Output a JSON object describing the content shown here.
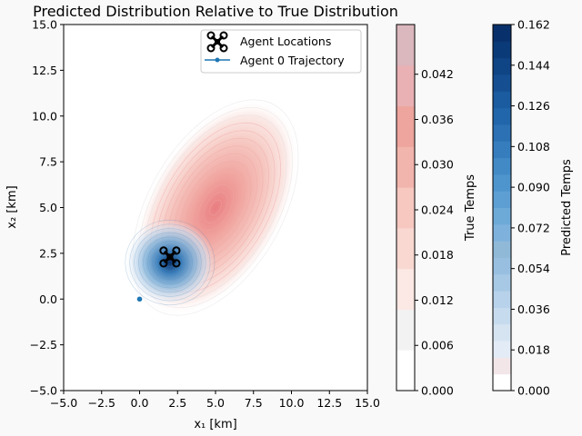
{
  "chart_data": {
    "type": "contour",
    "title": "Predicted Distribution Relative to True Distribution",
    "xlabel": "x₁ [km]",
    "ylabel": "x₂ [km]",
    "xlim": [
      -5,
      15
    ],
    "ylim": [
      -5,
      15
    ],
    "xticks": [
      "−5.0",
      "−2.5",
      "0.0",
      "2.5",
      "5.0",
      "7.5",
      "10.0",
      "12.5",
      "15.0"
    ],
    "xtick_values": [
      -5,
      -2.5,
      0,
      2.5,
      5,
      7.5,
      10,
      12.5,
      15
    ],
    "yticks": [
      "−5.0",
      "−2.5",
      "0.0",
      "2.5",
      "5.0",
      "7.5",
      "10.0",
      "12.5",
      "15.0"
    ],
    "ytick_values": [
      -5,
      -2.5,
      0,
      2.5,
      5,
      7.5,
      10,
      12.5,
      15
    ],
    "grid": false,
    "legend_position": "top-right",
    "legend": [
      {
        "label": "Agent Locations",
        "marker": "drone-icon"
      },
      {
        "label": "Agent 0 Trajectory",
        "marker": "line-dot",
        "color": "#1f77b4"
      }
    ],
    "true_distribution": {
      "center": [
        5,
        5
      ],
      "peak": 0.045,
      "colormap": "Reds"
    },
    "predicted_distribution": {
      "center": [
        2,
        2
      ],
      "peak": 0.16,
      "colormap": "Blues"
    },
    "agent_locations": [
      [
        2,
        2.3
      ]
    ],
    "trajectory": [
      [
        0,
        0
      ]
    ],
    "trajectory_color": "#1f77b4",
    "colorbars": [
      {
        "label": "True Temps",
        "ticks": [
          "0.000",
          "0.006",
          "0.012",
          "0.018",
          "0.024",
          "0.030",
          "0.036",
          "0.042"
        ],
        "tick_values": [
          0,
          0.006,
          0.012,
          0.018,
          0.024,
          0.03,
          0.036,
          0.042
        ],
        "min": 0,
        "max": 0.0486,
        "levels": [
          "#ffffff",
          "#f2f2f2",
          "#fce8e4",
          "#f9d8d2",
          "#f6c8c0",
          "#f2b5ad",
          "#eda59e",
          "#e9b1b4",
          "#dbb7be"
        ]
      },
      {
        "label": "Predicted Temps",
        "ticks": [
          "0.000",
          "0.018",
          "0.036",
          "0.054",
          "0.072",
          "0.090",
          "0.108",
          "0.126",
          "0.144",
          "0.162"
        ],
        "tick_values": [
          0,
          0.018,
          0.036,
          0.054,
          0.072,
          0.09,
          0.108,
          0.126,
          0.144,
          0.162
        ],
        "min": 0,
        "max": 0.162,
        "levels": [
          "#ffffff",
          "#f3e6e8",
          "#e3ecf6",
          "#d6e4f2",
          "#c7dbee",
          "#b7d2ea",
          "#a8c9e5",
          "#98bfe0",
          "#90b9d8",
          "#7eb2dc",
          "#6eaad8",
          "#5e9fd3",
          "#4f95cd",
          "#428ac6",
          "#367dbd",
          "#2b71b4",
          "#2166aa",
          "#1b5b9f",
          "#154f92",
          "#0f4485",
          "#0b3a78",
          "#08306b"
        ]
      }
    ]
  }
}
